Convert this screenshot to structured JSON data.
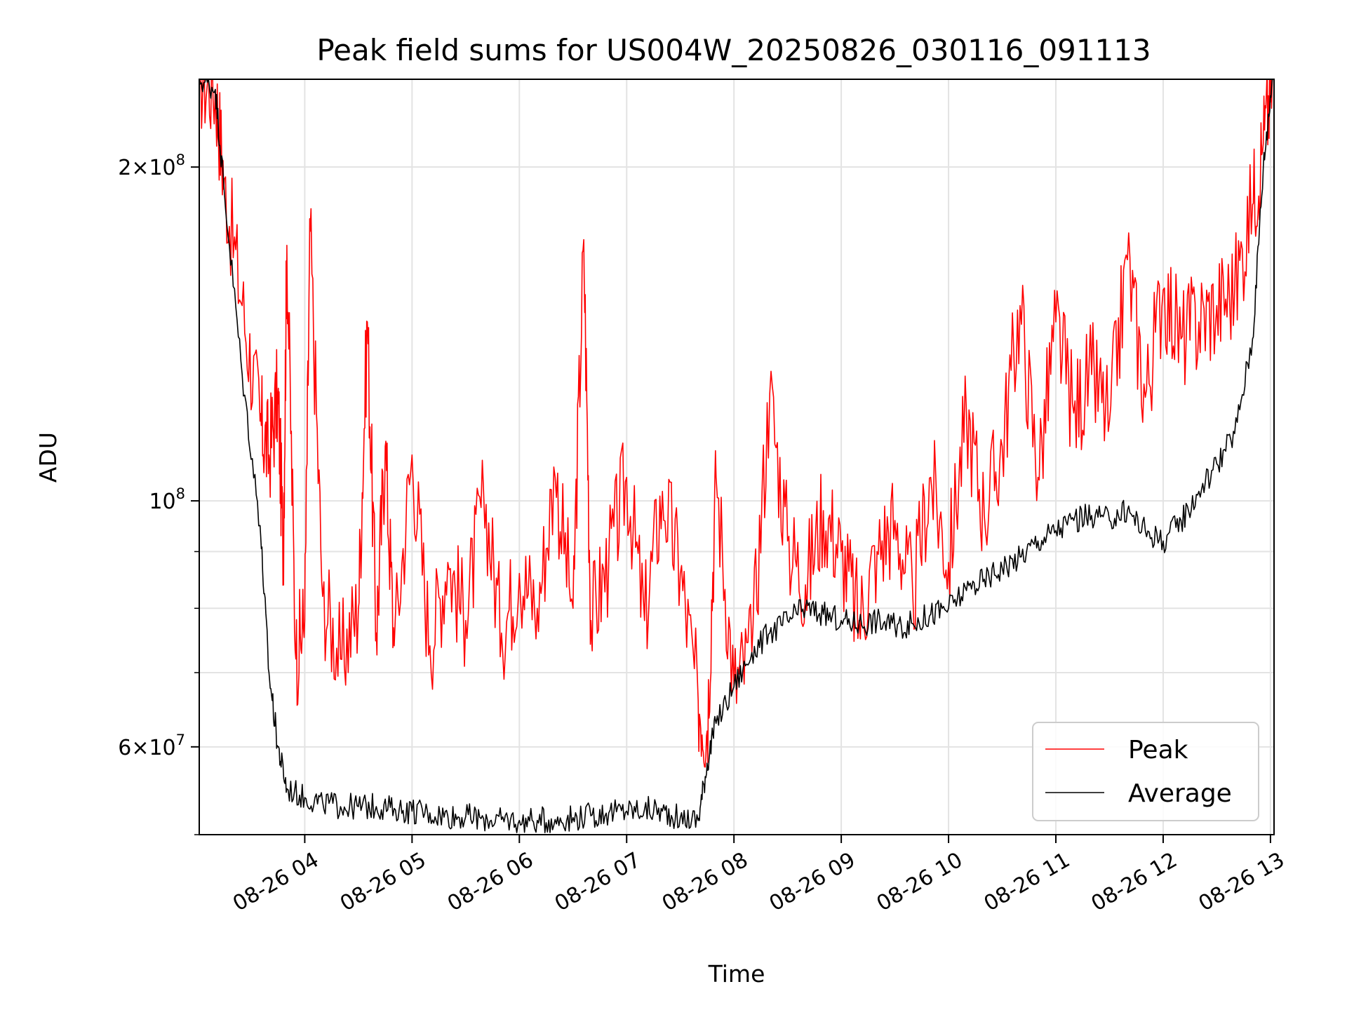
{
  "chart_data": {
    "type": "line",
    "title": "Peak field sums for US004W_20250826_030116_091113",
    "xlabel": "Time",
    "ylabel": "ADU",
    "y_scale": "log",
    "grid": true,
    "legend_position": "lower-right",
    "xlim": [
      "2025-08-26 03:01",
      "2025-08-26 13:02"
    ],
    "ylim": [
      50000000,
      240000000
    ],
    "x_ticks": [
      "08-26 04",
      "08-26 05",
      "08-26 06",
      "08-26 07",
      "08-26 08",
      "08-26 09",
      "08-26 10",
      "08-26 11",
      "08-26 12",
      "08-26 13"
    ],
    "y_major_ticks": [
      {
        "value": 60000000,
        "mantissa": "6",
        "exponent": "7"
      },
      {
        "value": 100000000,
        "mantissa": "",
        "exponent": "8"
      },
      {
        "value": 200000000,
        "mantissa": "2",
        "exponent": "8"
      }
    ],
    "y_minor_ticks": [
      50000000,
      70000000,
      80000000,
      90000000
    ],
    "series": [
      {
        "name": "Peak",
        "color": "#ff0000",
        "x": [
          "03:01",
          "03:10",
          "03:15",
          "03:25",
          "03:35",
          "03:40",
          "03:45",
          "03:48",
          "03:50",
          "03:55",
          "04:00",
          "04:03",
          "04:10",
          "04:20",
          "04:30",
          "04:35",
          "04:40",
          "04:45",
          "04:50",
          "05:00",
          "05:10",
          "05:20",
          "05:30",
          "05:40",
          "05:50",
          "06:00",
          "06:10",
          "06:20",
          "06:30",
          "06:36",
          "06:40",
          "06:50",
          "07:00",
          "07:10",
          "07:20",
          "07:30",
          "07:40",
          "07:45",
          "07:50",
          "08:00",
          "08:10",
          "08:20",
          "08:30",
          "08:40",
          "08:50",
          "09:00",
          "09:10",
          "09:20",
          "09:30",
          "09:40",
          "09:50",
          "10:00",
          "10:10",
          "10:20",
          "10:30",
          "10:40",
          "10:50",
          "11:00",
          "11:10",
          "11:20",
          "11:30",
          "11:40",
          "11:50",
          "12:00",
          "12:10",
          "12:20",
          "12:30",
          "12:40",
          "12:50",
          "12:56",
          "13:01"
        ],
        "y": [
          240000000,
          235000000,
          195000000,
          150000000,
          118000000,
          110000000,
          125000000,
          90000000,
          170000000,
          72000000,
          78000000,
          175000000,
          82000000,
          72000000,
          80000000,
          145000000,
          76000000,
          112000000,
          74000000,
          110000000,
          74000000,
          88000000,
          78000000,
          102000000,
          76000000,
          86000000,
          80000000,
          105000000,
          80000000,
          172000000,
          78000000,
          88000000,
          105000000,
          78000000,
          102000000,
          86000000,
          66000000,
          62000000,
          105000000,
          68000000,
          73000000,
          125000000,
          92000000,
          84000000,
          98000000,
          90000000,
          78000000,
          90000000,
          96000000,
          82000000,
          105000000,
          88000000,
          120000000,
          97000000,
          112000000,
          150000000,
          105000000,
          145000000,
          120000000,
          130000000,
          118000000,
          165000000,
          124000000,
          155000000,
          140000000,
          145000000,
          150000000,
          155000000,
          185000000,
          210000000,
          240000000
        ]
      },
      {
        "name": "Average",
        "color": "#000000",
        "x": [
          "03:01",
          "03:10",
          "03:15",
          "03:25",
          "03:35",
          "03:40",
          "03:45",
          "03:50",
          "04:00",
          "04:10",
          "04:20",
          "04:30",
          "04:40",
          "04:50",
          "05:00",
          "05:10",
          "05:20",
          "05:30",
          "05:40",
          "05:50",
          "06:00",
          "06:10",
          "06:20",
          "06:30",
          "06:40",
          "06:50",
          "07:00",
          "07:10",
          "07:20",
          "07:30",
          "07:40",
          "07:45",
          "07:50",
          "08:00",
          "08:10",
          "08:20",
          "08:30",
          "08:40",
          "08:50",
          "09:00",
          "09:10",
          "09:20",
          "09:30",
          "09:40",
          "09:50",
          "10:00",
          "10:10",
          "10:20",
          "10:30",
          "10:40",
          "10:50",
          "11:00",
          "11:10",
          "11:20",
          "11:30",
          "11:40",
          "11:50",
          "12:00",
          "12:10",
          "12:20",
          "12:30",
          "12:40",
          "12:50",
          "12:56",
          "13:01"
        ],
        "y": [
          240000000,
          235000000,
          190000000,
          130000000,
          95000000,
          70000000,
          60000000,
          55000000,
          54000000,
          53500000,
          53000000,
          53000000,
          53000000,
          52800000,
          52500000,
          52300000,
          52000000,
          51900000,
          51700000,
          51600000,
          51500000,
          51500000,
          51600000,
          51800000,
          52000000,
          52300000,
          52500000,
          52700000,
          52500000,
          51800000,
          51500000,
          58000000,
          63000000,
          68000000,
          73000000,
          76000000,
          78000000,
          80000000,
          79000000,
          78000000,
          77500000,
          78000000,
          77000000,
          77500000,
          79000000,
          80000000,
          83000000,
          85000000,
          87000000,
          89000000,
          92000000,
          94000000,
          96000000,
          97000000,
          96000000,
          98000000,
          94000000,
          92000000,
          96000000,
          102000000,
          108000000,
          115000000,
          140000000,
          200000000,
          240000000
        ]
      }
    ]
  }
}
